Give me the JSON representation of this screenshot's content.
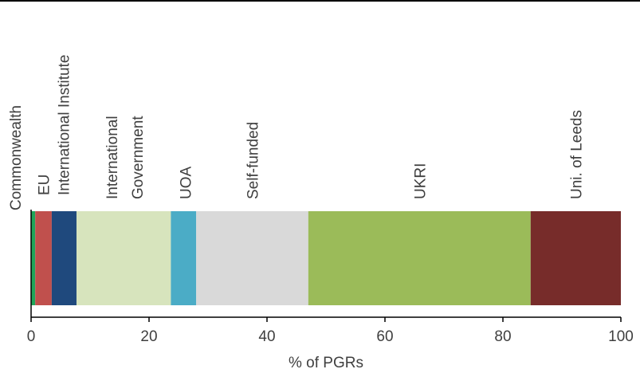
{
  "chart_data": {
    "type": "bar",
    "orientation": "horizontal-stacked",
    "xlabel": "% of PGRs",
    "xlim": [
      0,
      100
    ],
    "xticks": [
      0,
      20,
      40,
      60,
      80,
      100
    ],
    "grid": false,
    "legend": "none",
    "series": [
      {
        "name": "Commonwealth",
        "value": 0.7,
        "color": "#1ea559"
      },
      {
        "name": "EU",
        "value": 2.8,
        "color": "#c0504d"
      },
      {
        "name": "International Institute",
        "value": 4.2,
        "color": "#1f497d"
      },
      {
        "name": "International Government",
        "label_lines": [
          "International",
          "Government"
        ],
        "value": 16.0,
        "color": "#d7e4bd"
      },
      {
        "name": "UOA",
        "value": 4.3,
        "color": "#4bacc6"
      },
      {
        "name": "Self-funded",
        "value": 19.0,
        "color": "#d9d9d9"
      },
      {
        "name": "UKRI",
        "value": 37.7,
        "color": "#9bbb59"
      },
      {
        "name": "Uni. of Leeds",
        "value": 15.3,
        "color": "#772c2a"
      }
    ]
  }
}
